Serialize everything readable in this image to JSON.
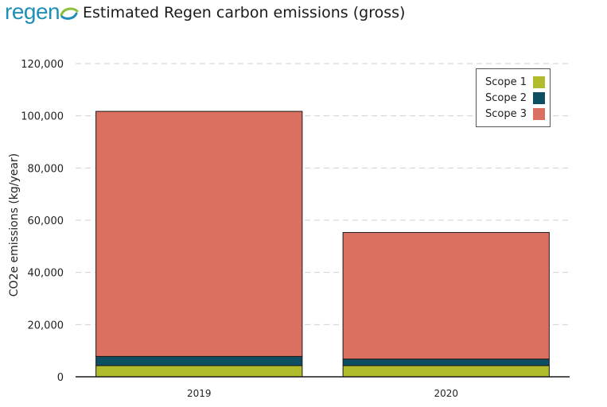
{
  "logo": {
    "text": "regen",
    "tagline": ""
  },
  "chart_data": {
    "type": "bar",
    "stacked": true,
    "title": "Estimated Regen carbon emissions (gross)",
    "xlabel": "",
    "ylabel": "CO2e emissions (kg/year)",
    "categories": [
      "2019",
      "2020"
    ],
    "ylim": [
      0,
      120000
    ],
    "yticks": [
      "0",
      "20,000",
      "40,000",
      "60,000",
      "80,000",
      "100,000",
      "120,000"
    ],
    "ytick_values": [
      0,
      20000,
      40000,
      60000,
      80000,
      100000,
      120000
    ],
    "grid": true,
    "legend_position": "top-right",
    "series": [
      {
        "name": "Scope 1",
        "color": "#b0bc2c",
        "values": [
          4300,
          4300
        ]
      },
      {
        "name": "Scope 2",
        "color": "#0e4e63",
        "values": [
          3500,
          2500
        ]
      },
      {
        "name": "Scope 3",
        "color": "#dc7060",
        "values": [
          93900,
          48500
        ]
      }
    ]
  }
}
